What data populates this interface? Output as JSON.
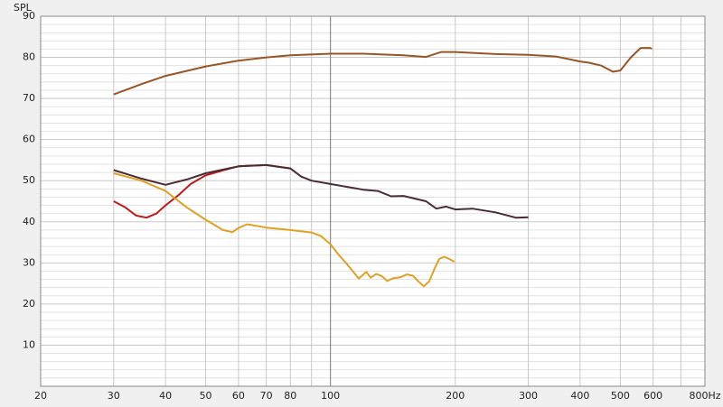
{
  "chart_data": {
    "type": "line",
    "ylabel": "SPL",
    "xscale": "log",
    "grid": true,
    "xlim": [
      20,
      800
    ],
    "ylim": [
      0,
      90
    ],
    "xticks": [
      20,
      30,
      40,
      50,
      60,
      70,
      80,
      100,
      200,
      300,
      400,
      500,
      600,
      {
        "value": 800,
        "label": "800Hz"
      }
    ],
    "xticks_minor": [
      90,
      700
    ],
    "yticks": [
      10,
      20,
      30,
      40,
      50,
      60,
      70,
      80,
      90
    ],
    "yticks_minor": [
      2,
      4,
      6,
      8,
      12,
      14,
      16,
      18,
      22,
      24,
      26,
      28,
      32,
      34,
      36,
      38,
      42,
      44,
      46,
      48,
      52,
      54,
      56,
      58,
      62,
      64,
      66,
      68,
      72,
      74,
      76,
      78,
      82,
      84,
      86,
      88
    ],
    "series": [
      {
        "color": "#9a5525",
        "x": [
          30,
          35,
          40,
          50,
          60,
          70,
          80,
          100,
          120,
          150,
          170,
          185,
          200,
          250,
          300,
          350,
          400,
          420,
          450,
          480,
          500,
          530,
          560,
          590,
          596
        ],
        "values": [
          71,
          73.5,
          75.5,
          77.8,
          79.2,
          80,
          80.5,
          80.9,
          80.9,
          80.5,
          80.1,
          81.3,
          81.3,
          80.8,
          80.6,
          80.2,
          79,
          78.7,
          78,
          76.5,
          76.8,
          80,
          82.3,
          82.3,
          82.1
        ]
      },
      {
        "color": "#c01a1a",
        "x": [
          30,
          32,
          34,
          36,
          38,
          40,
          43,
          46,
          50,
          55,
          60,
          70,
          80
        ],
        "values": [
          45,
          43.5,
          41.5,
          41,
          42,
          44,
          46.5,
          49.2,
          51.3,
          52.5,
          53.5,
          53.8,
          53
        ]
      },
      {
        "color": "#4a2c32",
        "x": [
          30,
          35,
          40,
          45,
          50,
          60,
          70,
          80,
          85,
          90,
          100,
          120,
          130,
          140,
          150,
          170,
          180,
          190,
          200,
          220,
          250,
          280,
          300
        ],
        "values": [
          52.6,
          50.5,
          49,
          50.3,
          51.8,
          53.5,
          53.8,
          53,
          51,
          50,
          49.2,
          47.8,
          47.5,
          46.2,
          46.3,
          45,
          43.2,
          43.7,
          43,
          43.2,
          42.3,
          41,
          41.1
        ]
      },
      {
        "color": "#e0a022",
        "x": [
          30,
          35,
          40,
          45,
          50,
          55,
          58,
          60,
          63,
          70,
          80,
          90,
          95,
          100,
          105,
          110,
          117,
          122,
          125,
          129,
          133,
          137,
          142,
          147,
          153,
          158,
          163,
          168,
          173,
          178,
          183,
          188,
          193,
          199
        ],
        "values": [
          51.8,
          50,
          47.5,
          43.5,
          40.5,
          38,
          37.5,
          38.5,
          39.4,
          38.6,
          38,
          37.4,
          36.5,
          34.5,
          31.8,
          29.5,
          26.2,
          27.8,
          26.4,
          27.3,
          26.8,
          25.6,
          26.3,
          26.5,
          27.2,
          26.9,
          25.5,
          24.3,
          25.5,
          28.5,
          31,
          31.5,
          31,
          30.3
        ]
      }
    ]
  }
}
